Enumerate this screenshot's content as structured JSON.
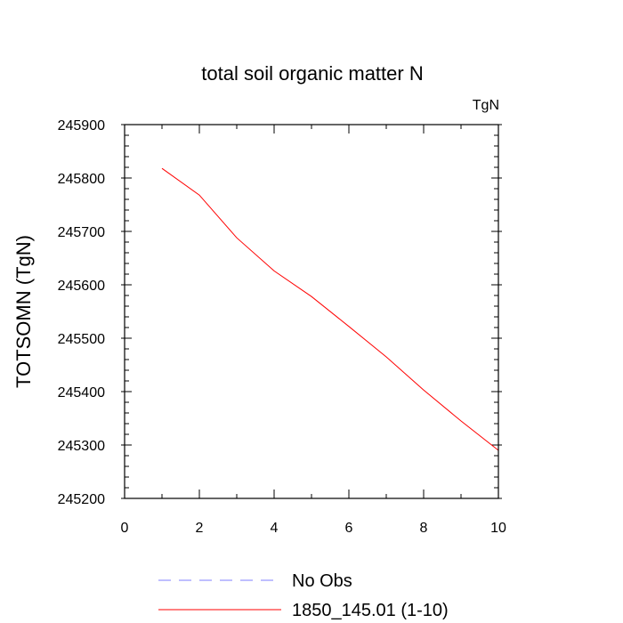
{
  "chart_data": {
    "type": "line",
    "title": "total soil organic matter N",
    "units_label": "TgN",
    "xlabel": "",
    "ylabel": "TOTSOMN  (TgN)",
    "xlim": [
      0,
      10
    ],
    "ylim": [
      245200,
      245900
    ],
    "x_ticks": [
      0,
      2,
      4,
      6,
      8,
      10
    ],
    "y_ticks": [
      245200,
      245300,
      245400,
      245500,
      245600,
      245700,
      245800,
      245900
    ],
    "grid": false,
    "legend_position": "bottom",
    "series": [
      {
        "name": "No Obs",
        "color": "#7f7fff",
        "dashed": true,
        "x": [],
        "y": []
      },
      {
        "name": "1850_145.01 (1-10)",
        "color": "#ff0000",
        "dashed": false,
        "x": [
          1,
          2,
          3,
          4,
          5,
          6,
          7,
          8,
          9,
          10
        ],
        "y": [
          245818,
          245768,
          245688,
          245626,
          245578,
          245522,
          245465,
          245403,
          245345,
          245290
        ]
      }
    ]
  }
}
